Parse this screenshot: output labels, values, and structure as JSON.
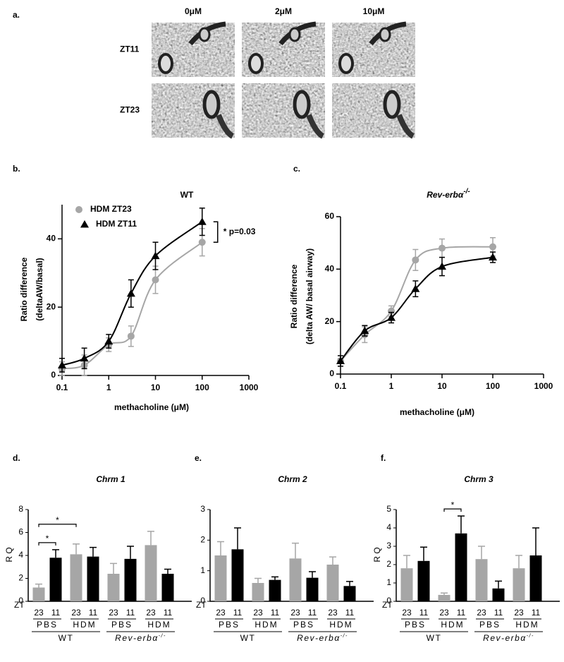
{
  "panel_a": {
    "label": "a.",
    "columns": [
      "0μM",
      "2μM",
      "10μM"
    ],
    "rows": [
      "ZT11",
      "ZT23"
    ]
  },
  "chart_data": [
    {
      "panel": "b.",
      "type": "line",
      "title": "WT",
      "xlabel": "methacholine (μM)",
      "ylabel": [
        "Ratio difference",
        "(deltaAW/basal)"
      ],
      "x": [
        0.1,
        0.3,
        1,
        3,
        10,
        100
      ],
      "xscale": "log",
      "xlim": [
        0.1,
        1000
      ],
      "xticks": [
        0.1,
        1,
        10,
        100,
        1000
      ],
      "ylim": [
        0,
        50
      ],
      "yticks": [
        0,
        20,
        40
      ],
      "legend": "upper left",
      "annotation": "* p=0.03",
      "series": [
        {
          "name": "HDM ZT23",
          "color": "#a6a6a6",
          "marker": "circle",
          "values": [
            2,
            3,
            9,
            11.5,
            28,
            39
          ],
          "errors": [
            2,
            3,
            2,
            3,
            4,
            4
          ]
        },
        {
          "name": "HDM ZT11",
          "color": "#000000",
          "marker": "triangle",
          "values": [
            3,
            5,
            10,
            24,
            35,
            45
          ],
          "errors": [
            2,
            3,
            2,
            4,
            4,
            4
          ]
        }
      ]
    },
    {
      "panel": "c.",
      "type": "line",
      "title": "Rev-erbα",
      "title_sup": "-/-",
      "xlabel": "methacholine (μM)",
      "ylabel": [
        "Ratio difference",
        "(delta AW/ basal airway)"
      ],
      "x": [
        0.1,
        0.3,
        1,
        3,
        10,
        100
      ],
      "xscale": "log",
      "xlim": [
        0.1,
        1000
      ],
      "xticks": [
        0.1,
        1,
        10,
        100,
        1000
      ],
      "ylim": [
        0,
        60
      ],
      "yticks": [
        0,
        20,
        40,
        60
      ],
      "series": [
        {
          "color": "#a6a6a6",
          "marker": "circle",
          "values": [
            5,
            15,
            24,
            43.5,
            48,
            48.5
          ],
          "errors": [
            1,
            3,
            2,
            4,
            3.5,
            3.5
          ]
        },
        {
          "color": "#000000",
          "marker": "triangle",
          "values": [
            5,
            16.5,
            21.5,
            32.5,
            41,
            44.5
          ],
          "errors": [
            2,
            2,
            2,
            3,
            3.5,
            2
          ]
        }
      ]
    },
    {
      "panel": "d.",
      "type": "bar",
      "title": "Chrm 1",
      "ylabel": "R Q",
      "ylim": [
        0,
        8
      ],
      "yticks": [
        0,
        2,
        4,
        6,
        8
      ],
      "x_prefix": "ZT",
      "categories": [
        "23",
        "11",
        "23",
        "11",
        "23",
        "11",
        "23",
        "11"
      ],
      "groups": [
        "PBS",
        "HDM",
        "PBS",
        "HDM"
      ],
      "genotypes": [
        {
          "text": "WT"
        },
        {
          "text": "Rev-erbα",
          "sup": "-/-"
        }
      ],
      "colors": [
        "#a6a6a6",
        "#000000",
        "#a6a6a6",
        "#000000",
        "#a6a6a6",
        "#000000",
        "#a6a6a6",
        "#000000"
      ],
      "values": [
        1.2,
        3.8,
        4.1,
        3.9,
        2.4,
        3.7,
        4.9,
        2.4
      ],
      "errors": [
        0.3,
        0.7,
        0.9,
        0.8,
        0.9,
        1.1,
        1.2,
        0.4
      ],
      "annotations": [
        {
          "text": "*",
          "bars": [
            0,
            1
          ]
        },
        {
          "text": "*",
          "bars": [
            0,
            2
          ]
        }
      ]
    },
    {
      "panel": "e.",
      "type": "bar",
      "title": "Chrm 2",
      "ylim": [
        0,
        3
      ],
      "yticks": [
        0,
        1,
        2,
        3
      ],
      "x_prefix": "ZT",
      "categories": [
        "23",
        "11",
        "23",
        "11",
        "23",
        "11",
        "23",
        "11"
      ],
      "groups": [
        "PBS",
        "HDM",
        "PBS",
        "HDM"
      ],
      "genotypes": [
        {
          "text": "WT"
        },
        {
          "text": "Rev-erbα",
          "sup": "-/-"
        }
      ],
      "colors": [
        "#a6a6a6",
        "#000000",
        "#a6a6a6",
        "#000000",
        "#a6a6a6",
        "#000000",
        "#a6a6a6",
        "#000000"
      ],
      "values": [
        1.5,
        1.7,
        0.6,
        0.7,
        1.4,
        0.77,
        1.2,
        0.5
      ],
      "errors": [
        0.45,
        0.7,
        0.15,
        0.1,
        0.5,
        0.2,
        0.25,
        0.15
      ]
    },
    {
      "panel": "f.",
      "type": "bar",
      "title": "Chrm 3",
      "ylabel": "R Q",
      "ylim": [
        0,
        5
      ],
      "yticks": [
        0,
        1,
        2,
        3,
        4,
        5
      ],
      "x_prefix": "ZT",
      "categories": [
        "23",
        "11",
        "23",
        "11",
        "23",
        "11",
        "23",
        "11"
      ],
      "groups": [
        "PBS",
        "HDM",
        "PBS",
        "HDM"
      ],
      "genotypes": [
        {
          "text": "WT"
        },
        {
          "text": "Rev-erbα",
          "sup": "-/-"
        }
      ],
      "colors": [
        "#a6a6a6",
        "#000000",
        "#a6a6a6",
        "#000000",
        "#a6a6a6",
        "#000000",
        "#a6a6a6",
        "#000000"
      ],
      "values": [
        1.8,
        2.2,
        0.35,
        3.7,
        2.3,
        0.7,
        1.8,
        2.5
      ],
      "errors": [
        0.7,
        0.75,
        0.1,
        0.95,
        0.7,
        0.4,
        0.7,
        1.5
      ],
      "annotations": [
        {
          "text": "*",
          "bars": [
            2,
            3
          ]
        }
      ]
    }
  ]
}
